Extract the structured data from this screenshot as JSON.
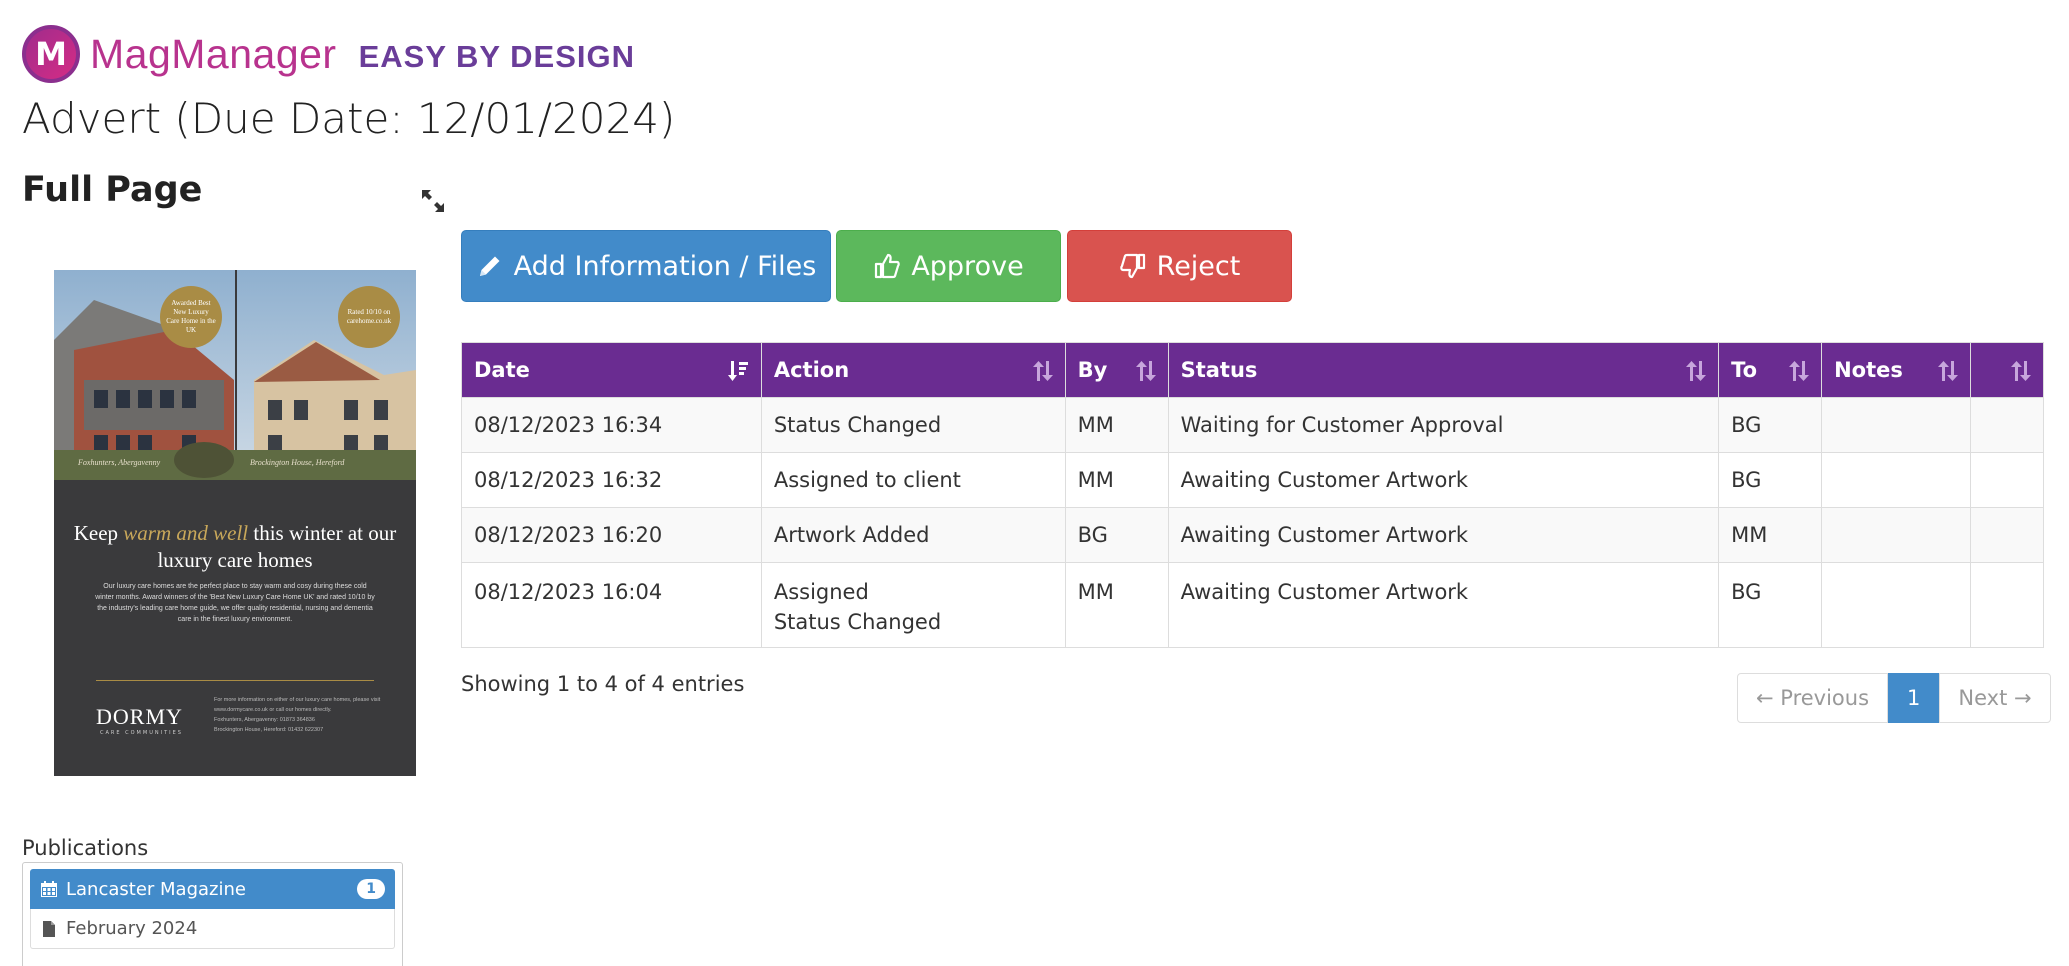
{
  "brand": {
    "logo_letter": "M",
    "name": "MagManager",
    "tagline": "EASY BY DESIGN",
    "colors": {
      "primary": "#b8338e",
      "secondary": "#6a3d99"
    }
  },
  "page": {
    "title": "Advert (Due Date: 12/01/2024)",
    "subtitle": "Full Page"
  },
  "advert": {
    "seal_left": "Awarded Best New Luxury Care Home in the UK",
    "seal_right": "Rated 10/10 on carehome.co.uk",
    "caption_left": "Foxhunters, Abergavenny",
    "caption_right": "Brockington House, Hereford",
    "headline_pre": "Keep ",
    "headline_em": "warm and well",
    "headline_post": " this winter at our luxury care homes",
    "body": "Our luxury care homes are the perfect place to stay warm and cosy during these cold winter months. Award winners of the 'Best New Luxury Care Home UK' and rated 10/10 by the industry's leading care home guide, we offer quality residential, nursing and dementia care in the finest luxury environment.",
    "brand": "DORMY",
    "brand_sub": "CARE COMMUNITIES",
    "contact_1": "For more information on either of our luxury care homes, please visit www.dormycare.co.uk or call our homes directly.",
    "contact_2": "Foxhunters, Abergavenny: 01873 364836",
    "contact_3": "Brockington House, Hereford: 01432 622307"
  },
  "publications": {
    "label": "Publications",
    "items": [
      {
        "name": "Lancaster Magazine",
        "count": "1",
        "icon": "calendar-icon"
      },
      {
        "name": "February 2024",
        "icon": "file-icon"
      }
    ]
  },
  "actions": {
    "add_info": "Add Information / Files",
    "approve": "Approve",
    "reject": "Reject"
  },
  "table": {
    "headers": [
      "Date",
      "Action",
      "By",
      "Status",
      "To",
      "Notes",
      ""
    ],
    "rows": [
      {
        "date": "08/12/2023 16:34",
        "action": "Status Changed",
        "action2": "",
        "by": "MM",
        "status": "Waiting for Customer Approval",
        "to": "BG",
        "notes": ""
      },
      {
        "date": "08/12/2023 16:32",
        "action": "Assigned to client",
        "action2": "",
        "by": "MM",
        "status": "Awaiting Customer Artwork",
        "to": "BG",
        "notes": ""
      },
      {
        "date": "08/12/2023 16:20",
        "action": "Artwork Added",
        "action2": "",
        "by": "BG",
        "status": "Awaiting Customer Artwork",
        "to": "MM",
        "notes": ""
      },
      {
        "date": "08/12/2023 16:04",
        "action": "Assigned",
        "action2": "Status Changed",
        "by": "MM",
        "status": "Awaiting Customer Artwork",
        "to": "BG",
        "notes": ""
      }
    ],
    "header_color": "#6a2c91"
  },
  "pagination": {
    "info": "Showing 1 to 4 of 4 entries",
    "previous": "← Previous",
    "current": "1",
    "next": "Next →"
  }
}
